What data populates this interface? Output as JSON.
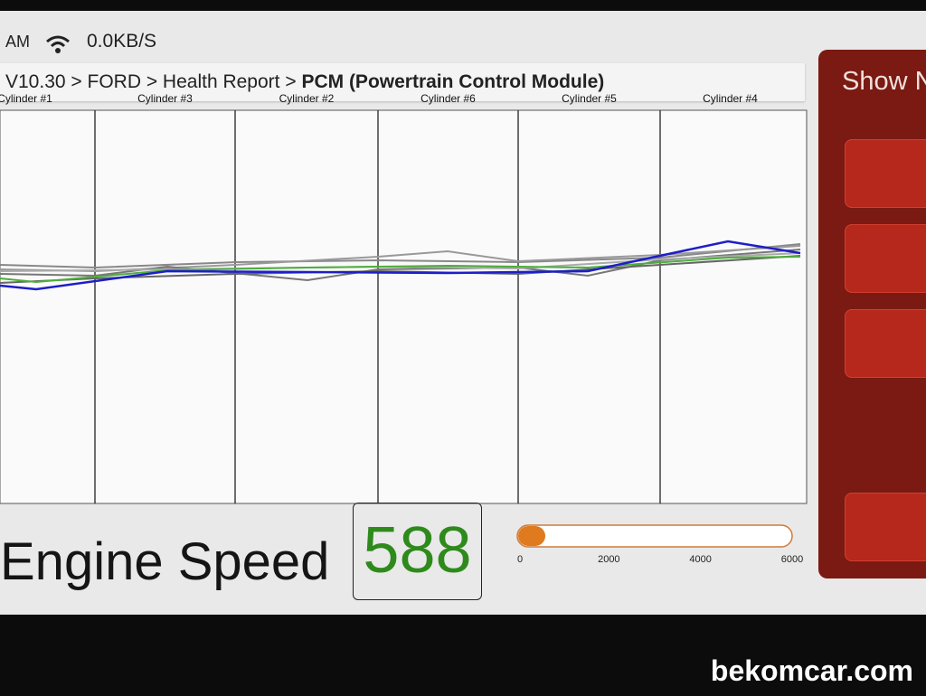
{
  "status_bar": {
    "time": "AM",
    "speed": "0.0KB/S"
  },
  "breadcrumb": {
    "path": "V10.30 > FORD > Health Report >",
    "current": "PCM (Powertrain Control Module)"
  },
  "chart": {
    "columns": [
      "Cylinder #1",
      "Cylinder #3",
      "Cylinder #2",
      "Cylinder #6",
      "Cylinder #5",
      "Cylinder #4"
    ]
  },
  "engine_speed": {
    "label": "Engine Speed",
    "value": 588,
    "lim": [
      0,
      6000
    ],
    "ticks": [
      0,
      2000,
      4000,
      6000
    ]
  },
  "side_panel": {
    "button": "Show N"
  },
  "watermark": "bekomcar.com"
}
